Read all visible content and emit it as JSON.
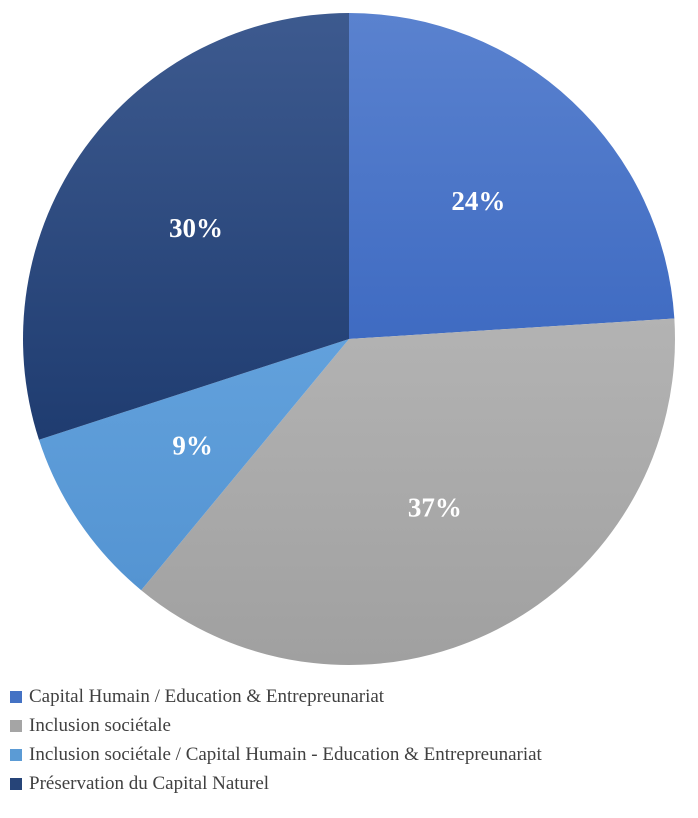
{
  "chart_data": {
    "type": "pie",
    "title": "",
    "series": [
      {
        "values": [
          24,
          37,
          9,
          30
        ],
        "labels": [
          "24%",
          "37%",
          "9%",
          "30%"
        ]
      }
    ],
    "categories": [
      "Capital Humain / Education & Entrepreunariat",
      "Inclusion sociétale",
      "Inclusion sociétale / Capital Humain - Education & Entrepreunariat",
      "Préservation du Capital Naturel"
    ],
    "colors": [
      "#4472c4",
      "#a5a5a5",
      "#5b9bd5",
      "#264478"
    ],
    "start_angle": "12 o'clock",
    "direction": "clockwise",
    "legend": "bottom-left"
  }
}
